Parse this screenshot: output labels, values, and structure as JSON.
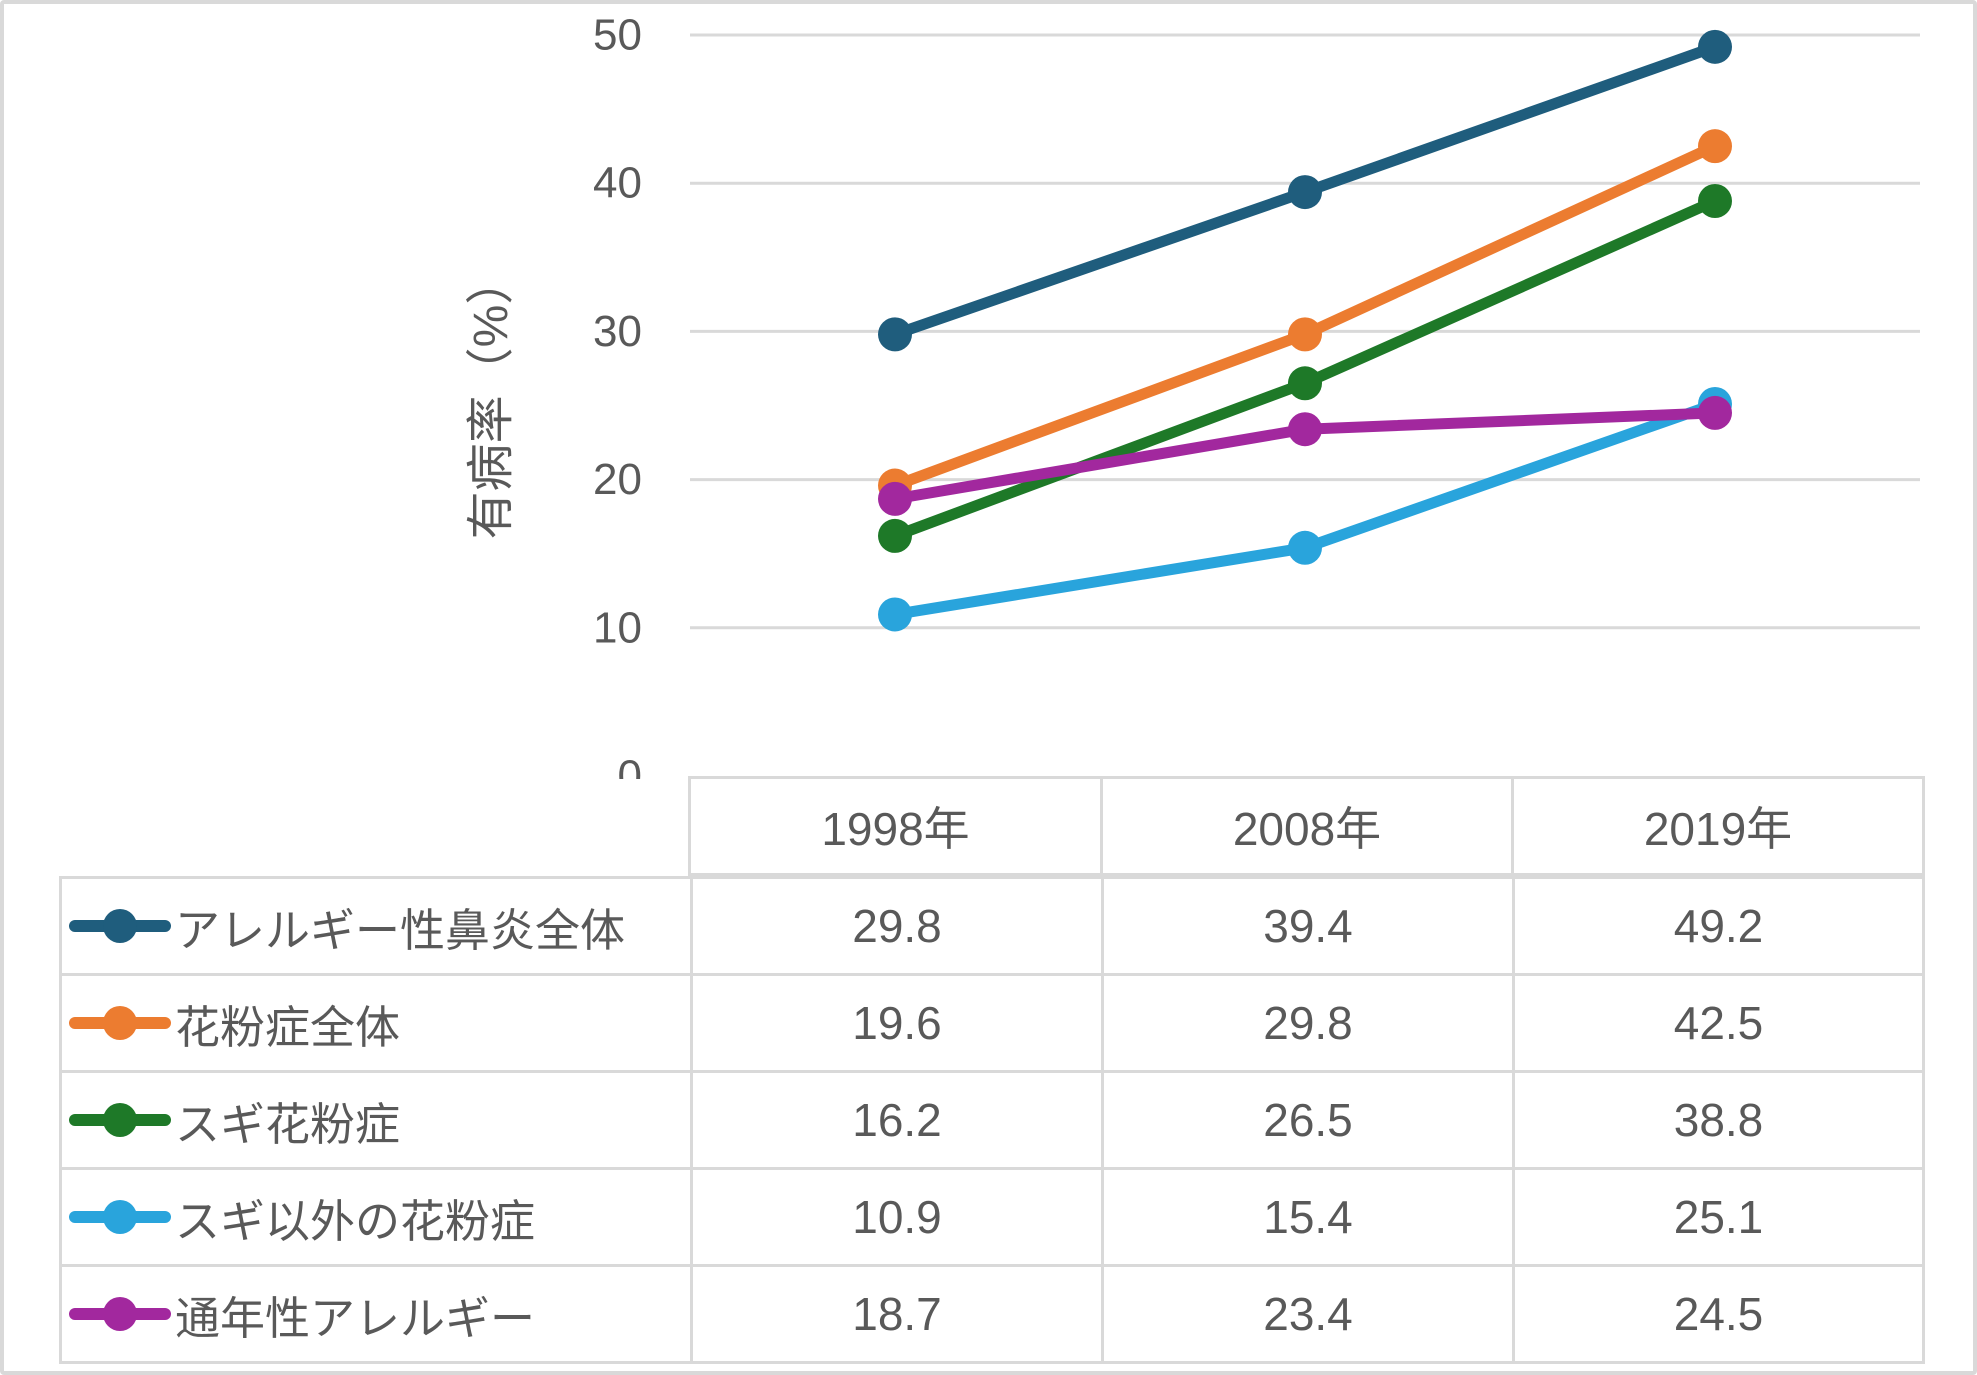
{
  "chart_data": {
    "type": "line",
    "title": "",
    "xlabel": "",
    "ylabel": "有病率（%）",
    "categories": [
      "1998年",
      "2008年",
      "2019年"
    ],
    "series": [
      {
        "name": "アレルギー性鼻炎全体",
        "color": "#1F5D7D",
        "values": [
          29.8,
          39.4,
          49.2
        ]
      },
      {
        "name": "花粉症全体",
        "color": "#EC7C30",
        "values": [
          19.6,
          29.8,
          42.5
        ]
      },
      {
        "name": "スギ花粉症",
        "color": "#1E7928",
        "values": [
          16.2,
          26.5,
          38.8
        ]
      },
      {
        "name": "スギ以外の花粉症",
        "color": "#29A4DC",
        "values": [
          10.9,
          15.4,
          25.1
        ]
      },
      {
        "name": "通年性アレルギー",
        "color": "#A2289E",
        "values": [
          18.7,
          23.4,
          24.5
        ]
      }
    ],
    "ylim": [
      0,
      50
    ],
    "yticks": [
      0,
      10,
      20,
      30,
      40,
      50
    ],
    "grid": "horizontal",
    "legend_position": "table-left",
    "colors": {
      "text": "#595959",
      "gridline": "#d9d9d9",
      "table_border": "#d9d9d9"
    }
  }
}
